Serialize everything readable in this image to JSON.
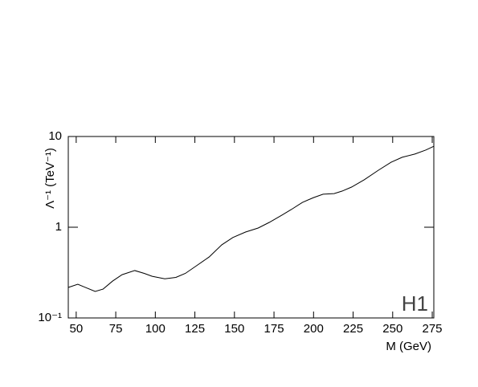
{
  "chart_data": {
    "type": "line",
    "x_label": "M (GeV)",
    "y_label": "Λ⁻¹ (TeV⁻¹)",
    "annotation": "H1",
    "log_y": true,
    "xlim": [
      45,
      276
    ],
    "xticks": [
      50,
      75,
      100,
      125,
      150,
      175,
      200,
      225,
      250,
      275
    ],
    "ylim": [
      0.1,
      10
    ],
    "yticks": [
      {
        "value": 0.1,
        "label": "10⁻¹"
      },
      1,
      10
    ],
    "series": [
      {
        "color": "#000000",
        "x": [
          45,
          51,
          55,
          62,
          67,
          73,
          79,
          87,
          93,
          98,
          106,
          113,
          119,
          126,
          134,
          142,
          149,
          157,
          165,
          172,
          180,
          186,
          193,
          200,
          206,
          213,
          218,
          224,
          232,
          241,
          249,
          256,
          264,
          271,
          276
        ],
        "values": [
          0.217,
          0.235,
          0.22,
          0.196,
          0.208,
          0.255,
          0.3,
          0.333,
          0.31,
          0.288,
          0.27,
          0.28,
          0.31,
          0.376,
          0.47,
          0.64,
          0.77,
          0.885,
          0.98,
          1.13,
          1.36,
          1.57,
          1.88,
          2.12,
          2.31,
          2.35,
          2.5,
          2.77,
          3.33,
          4.25,
          5.2,
          5.9,
          6.4,
          7.1,
          7.8
        ]
      }
    ]
  }
}
